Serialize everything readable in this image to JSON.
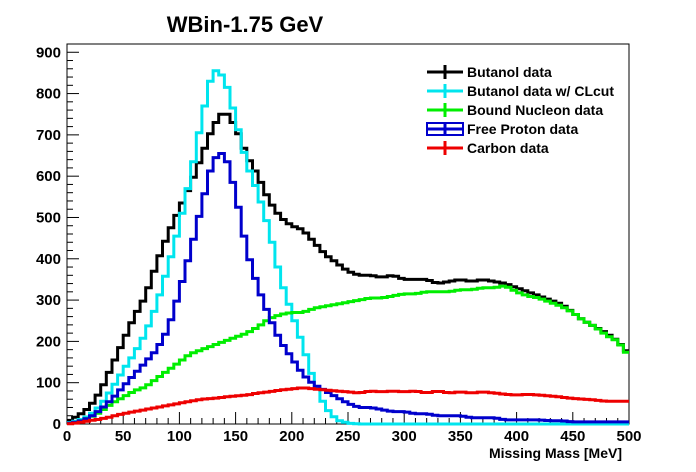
{
  "chart_data": {
    "type": "line",
    "title": "WBin-1.75 GeV",
    "xlabel": "Missing Mass [MeV]",
    "ylabel": "",
    "xlim": [
      0,
      500
    ],
    "ylim": [
      0,
      920
    ],
    "x_ticks": [
      0,
      50,
      100,
      150,
      200,
      250,
      300,
      350,
      400,
      450,
      500
    ],
    "y_ticks": [
      0,
      100,
      200,
      300,
      400,
      500,
      600,
      700,
      800,
      900
    ],
    "grid": false,
    "legend_position": "top-right",
    "series": [
      {
        "name": "Butanol data",
        "color": "#000000",
        "points": [
          [
            0,
            5
          ],
          [
            10,
            20
          ],
          [
            20,
            40
          ],
          [
            30,
            80
          ],
          [
            40,
            140
          ],
          [
            50,
            200
          ],
          [
            60,
            260
          ],
          [
            70,
            310
          ],
          [
            80,
            390
          ],
          [
            90,
            460
          ],
          [
            100,
            520
          ],
          [
            110,
            580
          ],
          [
            120,
            650
          ],
          [
            130,
            720
          ],
          [
            140,
            760
          ],
          [
            150,
            720
          ],
          [
            160,
            650
          ],
          [
            170,
            600
          ],
          [
            180,
            540
          ],
          [
            190,
            500
          ],
          [
            200,
            480
          ],
          [
            210,
            470
          ],
          [
            220,
            440
          ],
          [
            230,
            410
          ],
          [
            240,
            390
          ],
          [
            250,
            370
          ],
          [
            260,
            360
          ],
          [
            270,
            360
          ],
          [
            280,
            355
          ],
          [
            290,
            360
          ],
          [
            300,
            350
          ],
          [
            310,
            350
          ],
          [
            320,
            350
          ],
          [
            330,
            340
          ],
          [
            340,
            345
          ],
          [
            350,
            350
          ],
          [
            360,
            345
          ],
          [
            370,
            350
          ],
          [
            380,
            345
          ],
          [
            390,
            340
          ],
          [
            400,
            330
          ],
          [
            410,
            320
          ],
          [
            420,
            310
          ],
          [
            430,
            300
          ],
          [
            440,
            290
          ],
          [
            450,
            270
          ],
          [
            460,
            250
          ],
          [
            470,
            235
          ],
          [
            480,
            220
          ],
          [
            490,
            200
          ],
          [
            500,
            170
          ]
        ]
      },
      {
        "name": "Butanol data w/ CLcut",
        "color": "#00e5ee",
        "points": [
          [
            0,
            2
          ],
          [
            10,
            8
          ],
          [
            20,
            20
          ],
          [
            30,
            45
          ],
          [
            40,
            85
          ],
          [
            50,
            130
          ],
          [
            60,
            170
          ],
          [
            70,
            220
          ],
          [
            80,
            290
          ],
          [
            90,
            380
          ],
          [
            100,
            480
          ],
          [
            110,
            600
          ],
          [
            120,
            740
          ],
          [
            130,
            860
          ],
          [
            140,
            840
          ],
          [
            150,
            740
          ],
          [
            160,
            630
          ],
          [
            170,
            560
          ],
          [
            180,
            470
          ],
          [
            190,
            350
          ],
          [
            200,
            270
          ],
          [
            210,
            190
          ],
          [
            220,
            100
          ],
          [
            230,
            40
          ],
          [
            240,
            10
          ],
          [
            250,
            2
          ],
          [
            260,
            0
          ],
          [
            300,
            0
          ],
          [
            400,
            0
          ],
          [
            500,
            0
          ]
        ]
      },
      {
        "name": "Bound Nucleon data",
        "color": "#00ee00",
        "points": [
          [
            0,
            0
          ],
          [
            10,
            5
          ],
          [
            20,
            15
          ],
          [
            30,
            30
          ],
          [
            40,
            50
          ],
          [
            50,
            65
          ],
          [
            60,
            80
          ],
          [
            70,
            90
          ],
          [
            80,
            110
          ],
          [
            90,
            130
          ],
          [
            100,
            150
          ],
          [
            110,
            170
          ],
          [
            120,
            180
          ],
          [
            130,
            190
          ],
          [
            140,
            200
          ],
          [
            150,
            210
          ],
          [
            160,
            220
          ],
          [
            170,
            235
          ],
          [
            180,
            255
          ],
          [
            190,
            265
          ],
          [
            200,
            270
          ],
          [
            210,
            270
          ],
          [
            220,
            280
          ],
          [
            230,
            285
          ],
          [
            240,
            290
          ],
          [
            250,
            295
          ],
          [
            260,
            300
          ],
          [
            270,
            305
          ],
          [
            280,
            305
          ],
          [
            290,
            310
          ],
          [
            300,
            315
          ],
          [
            310,
            315
          ],
          [
            320,
            320
          ],
          [
            330,
            320
          ],
          [
            340,
            320
          ],
          [
            350,
            325
          ],
          [
            360,
            325
          ],
          [
            370,
            330
          ],
          [
            380,
            330
          ],
          [
            390,
            335
          ],
          [
            400,
            320
          ],
          [
            410,
            310
          ],
          [
            420,
            305
          ],
          [
            430,
            295
          ],
          [
            440,
            285
          ],
          [
            450,
            270
          ],
          [
            460,
            250
          ],
          [
            470,
            235
          ],
          [
            480,
            215
          ],
          [
            490,
            200
          ],
          [
            500,
            165
          ]
        ]
      },
      {
        "name": "Free Proton data",
        "color": "#0000cc",
        "points": [
          [
            0,
            1
          ],
          [
            10,
            5
          ],
          [
            20,
            15
          ],
          [
            30,
            35
          ],
          [
            40,
            60
          ],
          [
            50,
            90
          ],
          [
            60,
            120
          ],
          [
            70,
            150
          ],
          [
            80,
            180
          ],
          [
            90,
            230
          ],
          [
            100,
            320
          ],
          [
            110,
            420
          ],
          [
            120,
            530
          ],
          [
            130,
            640
          ],
          [
            140,
            660
          ],
          [
            150,
            560
          ],
          [
            160,
            420
          ],
          [
            170,
            330
          ],
          [
            180,
            260
          ],
          [
            190,
            200
          ],
          [
            200,
            160
          ],
          [
            210,
            120
          ],
          [
            220,
            95
          ],
          [
            230,
            80
          ],
          [
            240,
            65
          ],
          [
            250,
            50
          ],
          [
            260,
            40
          ],
          [
            270,
            40
          ],
          [
            280,
            35
          ],
          [
            290,
            30
          ],
          [
            300,
            30
          ],
          [
            310,
            25
          ],
          [
            320,
            25
          ],
          [
            330,
            20
          ],
          [
            340,
            20
          ],
          [
            350,
            20
          ],
          [
            360,
            15
          ],
          [
            370,
            15
          ],
          [
            380,
            15
          ],
          [
            390,
            10
          ],
          [
            400,
            10
          ],
          [
            410,
            10
          ],
          [
            420,
            10
          ],
          [
            430,
            8
          ],
          [
            440,
            8
          ],
          [
            450,
            5
          ],
          [
            460,
            5
          ],
          [
            470,
            5
          ],
          [
            480,
            5
          ],
          [
            490,
            5
          ],
          [
            500,
            5
          ]
        ]
      },
      {
        "name": "Carbon data",
        "color": "#ee0000",
        "points": [
          [
            0,
            0
          ],
          [
            10,
            3
          ],
          [
            20,
            8
          ],
          [
            30,
            12
          ],
          [
            40,
            18
          ],
          [
            50,
            25
          ],
          [
            60,
            30
          ],
          [
            70,
            35
          ],
          [
            80,
            40
          ],
          [
            90,
            45
          ],
          [
            100,
            50
          ],
          [
            110,
            55
          ],
          [
            120,
            60
          ],
          [
            130,
            62
          ],
          [
            140,
            65
          ],
          [
            150,
            68
          ],
          [
            160,
            70
          ],
          [
            170,
            75
          ],
          [
            180,
            78
          ],
          [
            190,
            82
          ],
          [
            200,
            85
          ],
          [
            210,
            88
          ],
          [
            220,
            85
          ],
          [
            230,
            82
          ],
          [
            240,
            80
          ],
          [
            250,
            78
          ],
          [
            260,
            75
          ],
          [
            270,
            80
          ],
          [
            280,
            78
          ],
          [
            290,
            80
          ],
          [
            300,
            78
          ],
          [
            310,
            80
          ],
          [
            320,
            75
          ],
          [
            330,
            80
          ],
          [
            340,
            75
          ],
          [
            350,
            78
          ],
          [
            360,
            75
          ],
          [
            370,
            78
          ],
          [
            380,
            75
          ],
          [
            390,
            72
          ],
          [
            400,
            70
          ],
          [
            410,
            72
          ],
          [
            420,
            70
          ],
          [
            430,
            68
          ],
          [
            440,
            65
          ],
          [
            450,
            62
          ],
          [
            460,
            60
          ],
          [
            470,
            58
          ],
          [
            480,
            55
          ],
          [
            490,
            55
          ],
          [
            500,
            55
          ]
        ]
      }
    ]
  }
}
